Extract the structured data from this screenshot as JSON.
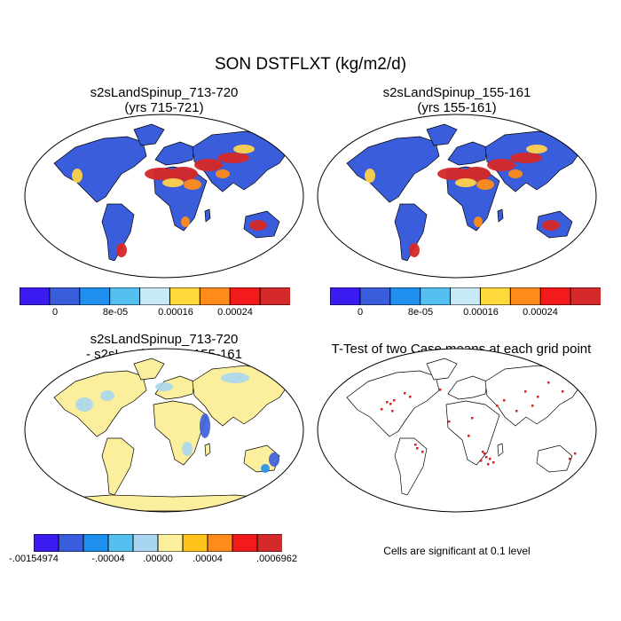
{
  "title": "SON DSTFLXT (kg/m2/d)",
  "colors": {
    "ocean": "#ffffff",
    "land_low": "#3a5ddb",
    "land_outline": "#000000",
    "dust_hot": "#d62828",
    "dust_mid": "#ff8c1a",
    "dust_warm": "#ffd24a",
    "diff_neutral": "#fbef9d",
    "diff_neg": "#a8d6f0",
    "sig_dot": "#e51a1a"
  },
  "panels": {
    "top_left": {
      "title": "s2sLandSpinup_713-720",
      "subtitle": "(yrs 715-721)"
    },
    "top_right": {
      "title": "s2sLandSpinup_155-161",
      "subtitle": "(yrs 155-161)"
    },
    "bottom_left": {
      "title": "s2sLandSpinup_713-720",
      "subtitle": "- s2sLandSpinup_155-161"
    },
    "bottom_right": {
      "title": "T-Test of two Case means at each grid point",
      "note": "Cells are significant at 0.1 level"
    }
  },
  "colorbars": {
    "abs": {
      "colors": [
        "#3a1cf0",
        "#3a5ddb",
        "#1f8ff0",
        "#55bff0",
        "#c8eaf7",
        "#ffd83a",
        "#ff8c1a",
        "#f21a1a",
        "#d42a2a"
      ],
      "labels": [
        "0",
        "8e-05",
        "0.00016",
        "0.00024"
      ]
    },
    "diff": {
      "colors": [
        "#3a1cf0",
        "#3a5ddb",
        "#1f8ff0",
        "#55bff0",
        "#a8d6f0",
        "#fbef9d",
        "#ffc21a",
        "#ff8c1a",
        "#f21a1a",
        "#d42a2a"
      ],
      "labels": [
        "-.00154974",
        "-.00004",
        ".00000",
        ".00004",
        ".0006962"
      ]
    }
  }
}
